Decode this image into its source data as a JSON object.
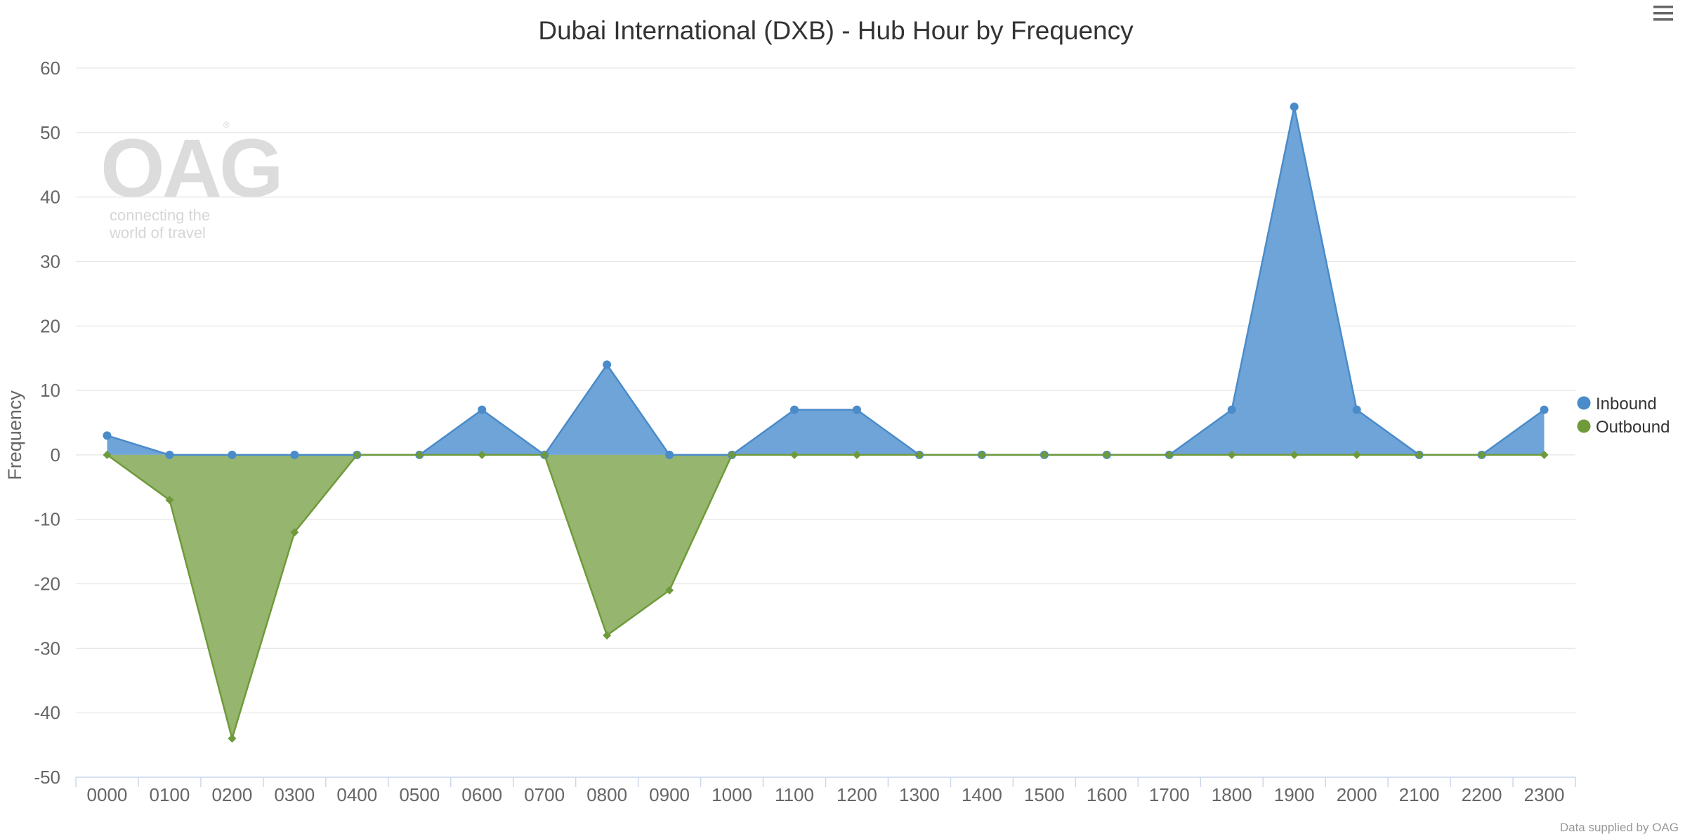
{
  "menu": {
    "icon": "hamburger-menu-icon"
  },
  "watermark": {
    "logo_text": "OAG",
    "registered_mark": "®",
    "tagline_line1": "connecting the",
    "tagline_line2": "world of travel"
  },
  "credits": "Data supplied by OAG",
  "chart_data": {
    "type": "area",
    "title": "Dubai International (DXB) - Hub Hour by Frequency",
    "xlabel": "",
    "ylabel": "Frequency",
    "ylim": [
      -50,
      60
    ],
    "y_ticks": [
      60,
      50,
      40,
      30,
      20,
      10,
      0,
      -10,
      -20,
      -30,
      -40,
      -50
    ],
    "grid": true,
    "legend_position": "right",
    "categories": [
      "0000",
      "0100",
      "0200",
      "0300",
      "0400",
      "0500",
      "0600",
      "0700",
      "0800",
      "0900",
      "1000",
      "1100",
      "1200",
      "1300",
      "1400",
      "1500",
      "1600",
      "1700",
      "1800",
      "1900",
      "2000",
      "2100",
      "2200",
      "2300"
    ],
    "series": [
      {
        "name": "Inbound",
        "color": "#4a8bc9",
        "fill": "#6fa4d8",
        "marker": "circle",
        "values": [
          3,
          0,
          0,
          0,
          0,
          0,
          7,
          0,
          14,
          0,
          0,
          7,
          7,
          0,
          0,
          0,
          0,
          0,
          7,
          54,
          7,
          0,
          0,
          7
        ]
      },
      {
        "name": "Outbound",
        "color": "#6f9a3a",
        "fill": "#96b56e",
        "marker": "diamond",
        "values": [
          0,
          -7,
          -44,
          -12,
          0,
          0,
          0,
          0,
          -28,
          -21,
          0,
          0,
          0,
          0,
          0,
          0,
          0,
          0,
          0,
          0,
          0,
          0,
          0,
          0
        ]
      }
    ]
  }
}
